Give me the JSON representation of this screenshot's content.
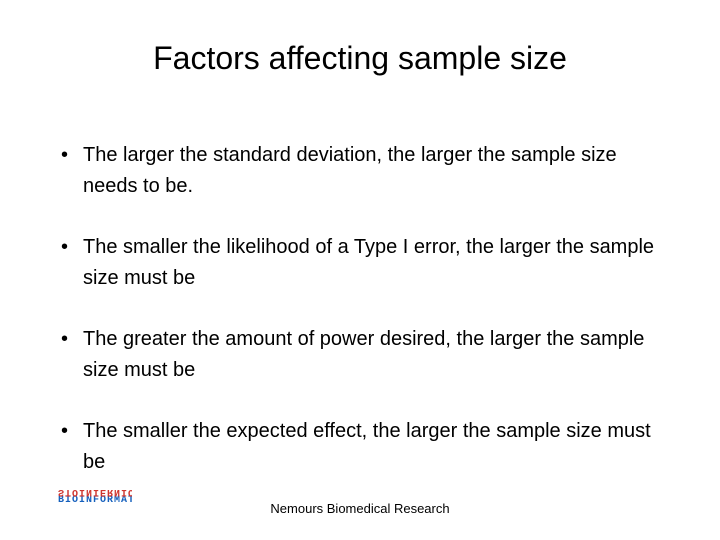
{
  "slide": {
    "title": "Factors affecting sample size",
    "bullets": [
      "The larger the standard deviation, the larger the sample size needs to be.",
      "The smaller the likelihood of a Type I error, the larger the sample size must be",
      "The greater the amount of power desired, the larger the sample size must be",
      "The smaller the expected effect, the larger the sample size must be"
    ],
    "footer": "Nemours Biomedical Research",
    "logo": {
      "top_text": "STOINIERNIOTS",
      "bottom_text": "BIOINFORMATICS",
      "top_color": "#cf352e",
      "bottom_color": "#1560bd"
    }
  },
  "style": {
    "background_color": "#ffffff",
    "text_color": "#000000",
    "title_fontsize": 32,
    "body_fontsize": 20,
    "footer_fontsize": 13,
    "font_family": "Arial"
  }
}
